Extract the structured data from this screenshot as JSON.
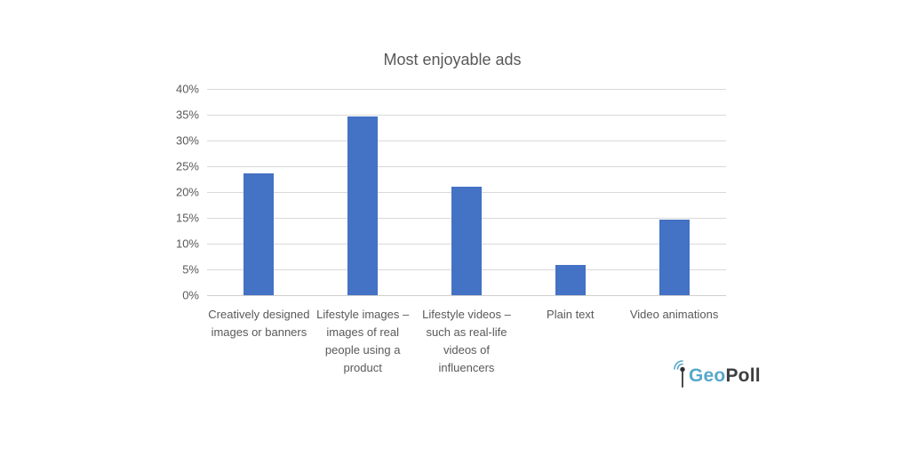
{
  "page": {
    "background_color": "#FFFFFF"
  },
  "chart_data": {
    "type": "bar",
    "title": "Most enjoyable ads",
    "categories": [
      "Creatively designed images or banners",
      "Lifestyle images – images of real people using a product",
      "Lifestyle videos – such as real-life videos of influencers",
      "Plain text",
      "Video animations"
    ],
    "values": [
      23.7,
      34.7,
      21.0,
      5.8,
      14.7
    ],
    "unit": "%",
    "xlabel": "",
    "ylabel": "",
    "ylim": [
      0,
      40
    ],
    "ytick_values": [
      0,
      5,
      10,
      15,
      20,
      25,
      30,
      35,
      40
    ],
    "ytick_labels": [
      "0%",
      "5%",
      "10%",
      "15%",
      "20%",
      "25%",
      "30%",
      "35%",
      "40%"
    ],
    "grid": true,
    "legend": false,
    "bar_color": "#4472C4",
    "gridline_color": "#D9D9D9",
    "axis_text_color": "#595959",
    "title_color": "#595959"
  },
  "logo": {
    "name": "GeoPoll",
    "icon": "antenna-signal-icon",
    "text_geo": "Geo",
    "text_poll": "Poll",
    "geo_color": "#56A8CB",
    "poll_color": "#3E3E40"
  }
}
